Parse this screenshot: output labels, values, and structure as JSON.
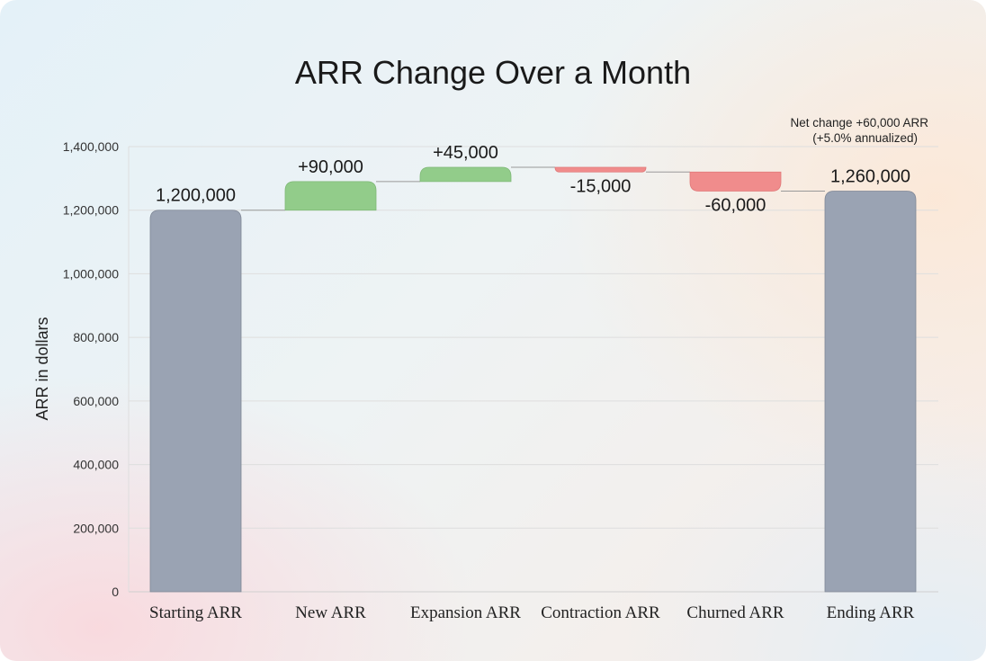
{
  "chart_data": {
    "type": "bar",
    "subtype": "waterfall",
    "title": "ARR Change Over a Month",
    "xlabel": "",
    "ylabel": "ARR in dollars",
    "ylim": [
      0,
      1400000
    ],
    "yticks": [
      0,
      200000,
      400000,
      600000,
      800000,
      1000000,
      1200000,
      1400000
    ],
    "ytick_labels": [
      "0",
      "200,000",
      "400,000",
      "600,000",
      "800,000",
      "1,000,000",
      "1,200,000",
      "1,400,000"
    ],
    "grid": true,
    "categories": [
      "Starting ARR",
      "New ARR",
      "Expansion ARR",
      "Contraction ARR",
      "Churned ARR",
      "Ending ARR"
    ],
    "values": [
      1200000,
      90000,
      45000,
      -15000,
      -60000,
      1260000
    ],
    "kinds": [
      "total",
      "delta",
      "delta",
      "delta",
      "delta",
      "total"
    ],
    "data_labels": [
      "1,200,000",
      "+90,000",
      "+45,000",
      "-15,000",
      "-60,000",
      "1,260,000"
    ],
    "annotation": [
      "Net change +60,000 ARR",
      "(+5.0% annualized)"
    ],
    "colors": {
      "total": "#9aa3b3",
      "increase": "#92cc8a",
      "decrease": "#f08c8c"
    }
  }
}
